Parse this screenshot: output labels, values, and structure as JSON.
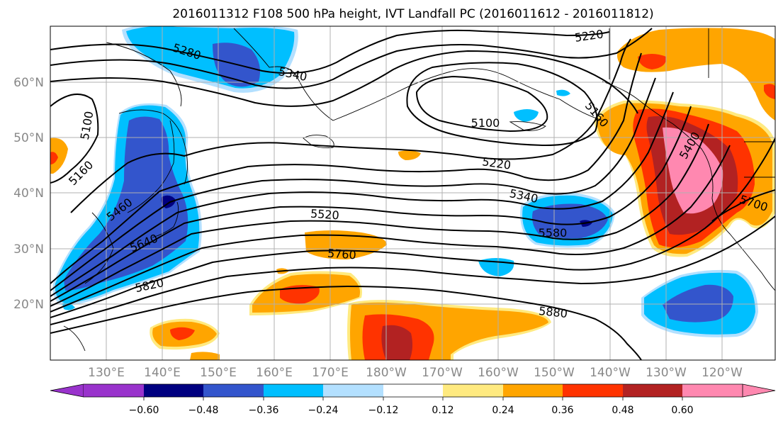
{
  "title": "2016011312 F108 500 hPa height, IVT Landfall PC (2016011612 - 2016011812)",
  "lat_labels": [
    "20°N",
    "30°N",
    "40°N",
    "50°N",
    "60°N"
  ],
  "lon_labels": [
    "130°E",
    "140°E",
    "150°E",
    "160°E",
    "170°E",
    "180°W",
    "170°W",
    "160°W",
    "150°W",
    "140°W",
    "130°W",
    "120°W"
  ],
  "contour_labels": [
    "5280",
    "5340",
    "5220",
    "5100",
    "5100",
    "5160",
    "5160",
    "5220",
    "5340",
    "5460",
    "5520",
    "5400",
    "5580",
    "5640",
    "5700",
    "5760",
    "5820",
    "5880"
  ],
  "colorbar": {
    "tick_labels": [
      "−0.60",
      "−0.48",
      "−0.36",
      "−0.24",
      "−0.12",
      "0.12",
      "0.24",
      "0.36",
      "0.48",
      "0.60"
    ],
    "colors": [
      "#9933cc",
      "#000080",
      "#3355cc",
      "#00bfff",
      "#b3e0ff",
      "#ffffff",
      "#ffea80",
      "#ffa500",
      "#ff3300",
      "#b22222",
      "#ff88b0"
    ]
  },
  "fill_colors": {
    "neg_strong": "#3355cc",
    "neg_mid": "#00bfff",
    "neg_weak": "#b3e0ff",
    "neg_max": "#000080",
    "pos_weak": "#ffea80",
    "pos_mid": "#ffa500",
    "pos_strong": "#ff3300",
    "pos_max": "#b22222",
    "pos_extreme": "#ff88b0"
  }
}
